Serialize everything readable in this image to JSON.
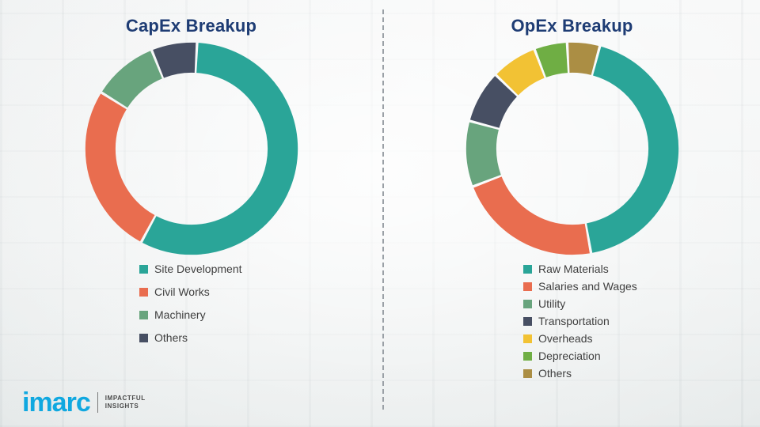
{
  "theme": {
    "title_color": "#1e3c74",
    "legend_text_color": "#3f3f3f",
    "divider_color": "#9aa0a6",
    "brand_blue": "#10a8e0"
  },
  "chart_data": [
    {
      "type": "pie",
      "donut": true,
      "title": "CapEx Breakup",
      "labels": [
        "Site Development",
        "Civil Works",
        "Machinery",
        "Others"
      ],
      "values": [
        57,
        26,
        10,
        7
      ],
      "colors": [
        "#2aa598",
        "#e96d4f",
        "#68a47d",
        "#474f63"
      ],
      "start_angle_deg": 3,
      "legend_position": "bottom-left"
    },
    {
      "type": "pie",
      "donut": true,
      "title": "OpEx Breakup",
      "labels": [
        "Raw Materials",
        "Salaries and Wages",
        "Utility",
        "Transportation",
        "Overheads",
        "Depreciation",
        "Others"
      ],
      "values": [
        43,
        22,
        10,
        8,
        7,
        5,
        5
      ],
      "colors": [
        "#2aa598",
        "#e96d4f",
        "#68a47d",
        "#474f63",
        "#f2c234",
        "#6fae44",
        "#ab8e44"
      ],
      "start_angle_deg": 15,
      "legend_position": "bottom-left"
    }
  ],
  "logo": {
    "brand": "imarc",
    "tagline_line1": "IMPACTFUL",
    "tagline_line2": "INSIGHTS"
  }
}
